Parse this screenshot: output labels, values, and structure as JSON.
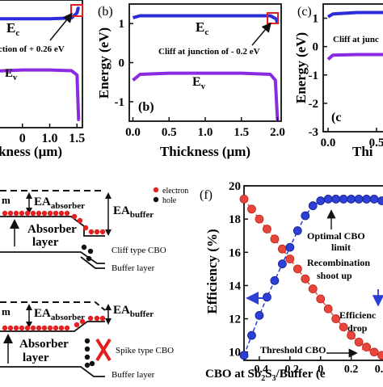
{
  "colors": {
    "conduction_band": "#2b2bd9",
    "valence_band": "#8a2be2",
    "highlight_box": "#e02020",
    "electron": "#e62020",
    "hole": "#111111",
    "band_edge": "#222222",
    "efficiency_red": "#e8453c",
    "efficiency_blue": "#2c3fd6"
  },
  "panel_a": {
    "ec_label": "E",
    "ec_sub": "c",
    "ev_label": "E",
    "ev_sub": "v",
    "annotation": "ction of + 0.26 eV",
    "xticks": [
      "0",
      "1.0",
      "1.5"
    ],
    "xlabel": "kness (μm)"
  },
  "panel_b": {
    "letter": "(b)",
    "inner_letter": "(b)",
    "ec_label": "E",
    "ec_sub": "c",
    "ev_label": "E",
    "ev_sub": "v",
    "annotation": "Cliff at junction of - 0.2 eV",
    "ylabel": "Energy (eV)",
    "yticks": [
      "1",
      "0",
      "-1"
    ],
    "xticks": [
      "0.0",
      "0.5",
      "1.0",
      "1.5",
      "2.0"
    ],
    "xlabel": "Thickness (μm)"
  },
  "panel_c": {
    "letter": "(c)",
    "inner_letter": "(c",
    "annotation": "Cliff at junc",
    "ylabel": "Energy (eV)",
    "yticks": [
      "1",
      "0",
      "-1",
      "-2",
      "-3"
    ],
    "xticks": [
      "0.0",
      "0.5"
    ],
    "xlabel": "Thi"
  },
  "panel_d": {
    "m_label": "m",
    "ea_absorber": "EA",
    "ea_absorber_sub": "absorber",
    "ea_buffer": "EA",
    "ea_buffer_sub": "buffer",
    "legend_electron": "electron",
    "legend_hole": "hole",
    "absorber_label_1": "Absorber",
    "absorber_label_2": "layer",
    "cbo_type": "Cliff type CBO",
    "buffer_label": "Buffer layer"
  },
  "panel_e": {
    "m_label": "m",
    "ea_absorber": "EA",
    "ea_absorber_sub": "absorber",
    "ea_buffer": "EA",
    "ea_buffer_sub": "buffer",
    "absorber_label_1": "Absorber",
    "absorber_label_2": "layer",
    "cbo_type": "Spike type CBO",
    "buffer_label": "Buffer layer"
  },
  "panel_f": {
    "letter": "(f)",
    "ylabel": "Efficiency (%)",
    "xlabel_pre": "CBO at Sb",
    "xlabel_sub1": "2",
    "xlabel_mid": "S",
    "xlabel_sub2": "3",
    "xlabel_post": "/Buffer (e",
    "ann_optimal_1": "Optimal CBO",
    "ann_optimal_2": "limit",
    "ann_recomb_1": "Recombination",
    "ann_recomb_2": "shoot up",
    "ann_eff_1": "Efficienc",
    "ann_eff_2": "drop",
    "ann_threshold": "Threshold CBO"
  },
  "chart_data": [
    {
      "type": "line",
      "panel": "a",
      "xlabel": "kness (μm)",
      "xlim": [
        0.0,
        1.6
      ],
      "ylim": [
        -1.5,
        1.5
      ],
      "series": [
        {
          "name": "Ec",
          "x": [
            0.0,
            0.5,
            1.0,
            1.4,
            1.5,
            1.52,
            1.55
          ],
          "y": [
            1.1,
            1.1,
            1.1,
            1.12,
            1.25,
            1.37,
            1.37
          ]
        },
        {
          "name": "Ev",
          "x": [
            0.0,
            0.5,
            1.0,
            1.4,
            1.5,
            1.53,
            1.55
          ],
          "y": [
            -0.25,
            -0.22,
            -0.22,
            -0.24,
            -0.35,
            -1.5,
            -1.5
          ]
        }
      ],
      "annotations": [
        "ction of + 0.26 eV"
      ]
    },
    {
      "type": "line",
      "panel": "b",
      "title": "(b)",
      "xlabel": "Thickness (μm)",
      "ylabel": "Energy (eV)",
      "xlim": [
        -0.05,
        2.05
      ],
      "ylim": [
        -1.5,
        1.5
      ],
      "series": [
        {
          "name": "Ec",
          "x": [
            0.0,
            0.1,
            0.5,
            1.0,
            1.5,
            1.9,
            1.98,
            2.0
          ],
          "y": [
            1.15,
            1.2,
            1.2,
            1.2,
            1.2,
            1.2,
            1.12,
            1.0
          ]
        },
        {
          "name": "Ev",
          "x": [
            0.0,
            0.1,
            0.5,
            1.0,
            1.5,
            1.9,
            1.97,
            2.0
          ],
          "y": [
            -0.45,
            -0.3,
            -0.27,
            -0.27,
            -0.27,
            -0.3,
            -0.45,
            -1.5
          ]
        }
      ],
      "annotations": [
        "Cliff at junction of - 0.2 eV"
      ]
    },
    {
      "type": "line",
      "panel": "c",
      "title": "(c)",
      "xlabel": "Thi",
      "ylabel": "Energy (eV)",
      "xlim": [
        -0.05,
        0.7
      ],
      "ylim": [
        -3.0,
        1.5
      ],
      "series": [
        {
          "name": "Ec",
          "x": [
            0.0,
            0.05,
            0.3,
            0.7
          ],
          "y": [
            1.05,
            1.15,
            1.2,
            1.2
          ]
        },
        {
          "name": "Ev",
          "x": [
            0.0,
            0.05,
            0.3,
            0.7
          ],
          "y": [
            -0.45,
            -0.3,
            -0.28,
            -0.28
          ]
        }
      ],
      "annotations": [
        "Cliff at junc"
      ]
    },
    {
      "type": "scatter",
      "panel": "f",
      "title": "(f)",
      "xlabel": "CBO at Sb2S3/Buffer (e",
      "ylabel": "Efficiency (%)",
      "xlim": [
        -0.5,
        0.45
      ],
      "ylim": [
        9.5,
        20
      ],
      "xticks": [
        -0.4,
        -0.2,
        0.0,
        0.2,
        0.4
      ],
      "yticks": [
        10,
        12,
        14,
        16,
        18,
        20
      ],
      "series": [
        {
          "name": "red",
          "x": [
            -0.5,
            -0.45,
            -0.4,
            -0.35,
            -0.3,
            -0.25,
            -0.2,
            -0.15,
            -0.1,
            -0.05,
            0.0,
            0.05,
            0.1,
            0.15,
            0.2,
            0.25,
            0.3,
            0.35,
            0.4,
            0.45
          ],
          "y": [
            19.2,
            18.6,
            18.0,
            17.4,
            16.8,
            16.2,
            15.6,
            15.0,
            14.4,
            13.8,
            13.2,
            12.6,
            12.0,
            11.5,
            11.0,
            10.6,
            10.3,
            10.0,
            9.8,
            9.7
          ]
        },
        {
          "name": "blue",
          "x": [
            -0.5,
            -0.45,
            -0.4,
            -0.35,
            -0.3,
            -0.25,
            -0.2,
            -0.15,
            -0.1,
            -0.05,
            0.0,
            0.05,
            0.1,
            0.15,
            0.2,
            0.25,
            0.3,
            0.35,
            0.4
          ],
          "y": [
            9.8,
            11.0,
            12.2,
            13.3,
            14.3,
            15.3,
            16.3,
            17.3,
            18.2,
            18.8,
            19.1,
            19.2,
            19.2,
            19.2,
            19.2,
            19.2,
            19.2,
            19.2,
            19.1
          ]
        }
      ],
      "annotations": [
        "Optimal CBO limit",
        "Recombination shoot up",
        "Efficienc drop",
        "Threshold CBO"
      ]
    }
  ]
}
